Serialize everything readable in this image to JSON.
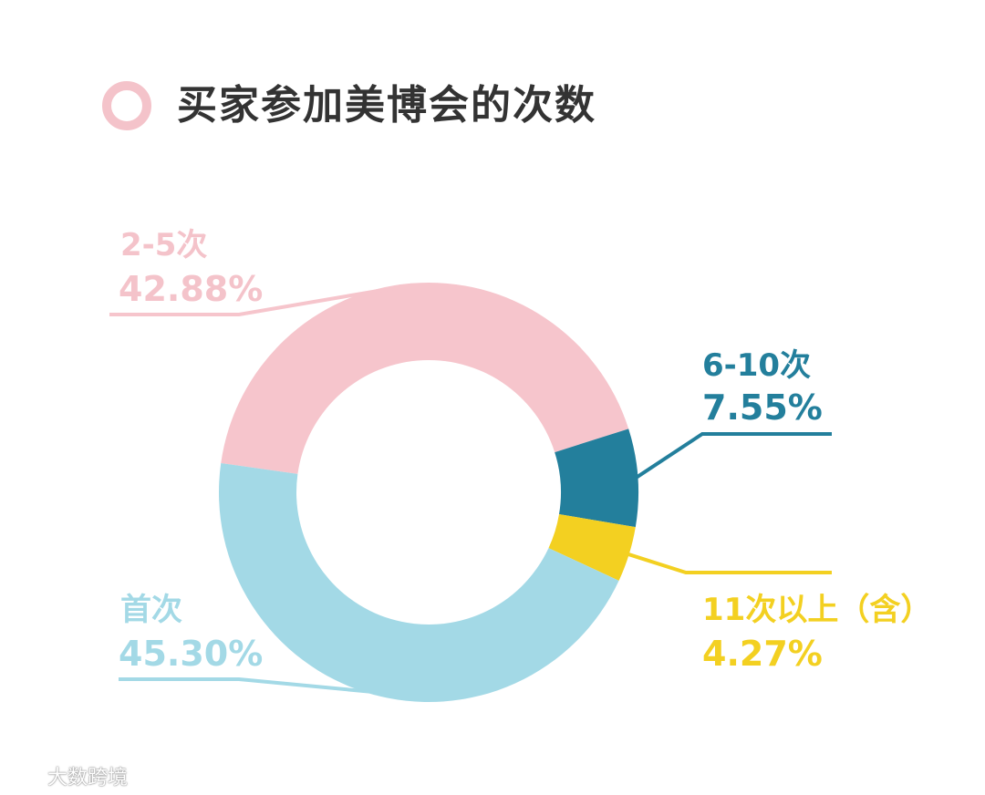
{
  "title": "买家参加美博会的次数",
  "watermark": "大数跨境",
  "colors": {
    "title_ring": "#f4c3ca",
    "title_text": "#333333"
  },
  "chart_data": {
    "type": "pie",
    "donut": true,
    "title": "买家参加美博会的次数",
    "slices": [
      {
        "label": "2-5次",
        "value_label": "42.88%",
        "value": 42.88,
        "color": "#f6c5cc"
      },
      {
        "label": "6-10次",
        "value_label": "7.55%",
        "value": 7.55,
        "color": "#237f9c"
      },
      {
        "label": "11次以上（含）",
        "value_label": "4.27%",
        "value": 4.27,
        "color": "#f3d021"
      },
      {
        "label": "首次",
        "value_label": "45.30%",
        "value": 45.3,
        "color": "#a3d9e6"
      }
    ]
  }
}
